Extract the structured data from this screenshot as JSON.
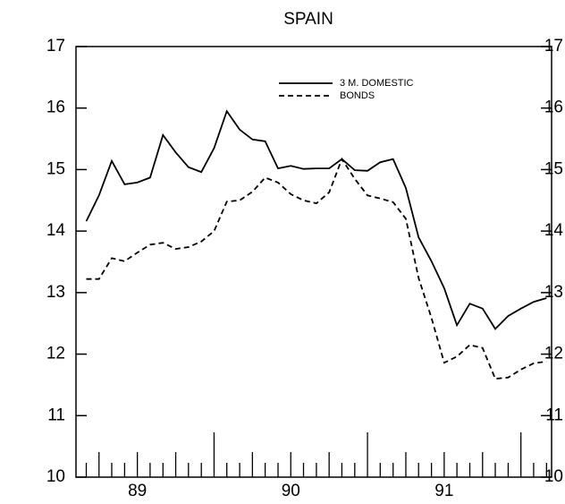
{
  "chart_data": {
    "type": "line",
    "title": "SPAIN",
    "x": [
      1988.667,
      1988.75,
      1988.833,
      1988.917,
      1989,
      1989.083,
      1989.167,
      1989.25,
      1989.333,
      1989.417,
      1989.5,
      1989.583,
      1989.667,
      1989.75,
      1989.833,
      1989.917,
      1990,
      1990.083,
      1990.167,
      1990.25,
      1990.333,
      1990.417,
      1990.5,
      1990.583,
      1990.667,
      1990.75,
      1990.833,
      1990.917,
      1991,
      1991.083,
      1991.167,
      1991.25,
      1991.333,
      1991.417,
      1991.5,
      1991.583,
      1991.667
    ],
    "series": [
      {
        "name": "3 M. DOMESTIC",
        "color": "#000000",
        "dash": "solid",
        "values": [
          14.16,
          14.58,
          15.14,
          14.76,
          14.79,
          14.87,
          15.56,
          15.28,
          15.04,
          14.96,
          15.35,
          15.95,
          15.65,
          15.49,
          15.46,
          15.02,
          15.06,
          15.01,
          15.02,
          15.02,
          15.17,
          14.99,
          14.98,
          15.12,
          15.17,
          14.7,
          13.9,
          13.51,
          13.07,
          12.47,
          12.82,
          12.74,
          12.41,
          12.62,
          12.74,
          12.85,
          12.91
        ]
      },
      {
        "name": "BONDS",
        "color": "#000000",
        "dash": "dashed",
        "values": [
          13.22,
          13.22,
          13.56,
          13.51,
          13.65,
          13.78,
          13.81,
          13.71,
          13.74,
          13.83,
          14.0,
          14.48,
          14.5,
          14.64,
          14.87,
          14.79,
          14.6,
          14.5,
          14.45,
          14.63,
          15.17,
          14.85,
          14.58,
          14.53,
          14.47,
          14.2,
          13.24,
          12.59,
          11.86,
          11.96,
          12.15,
          12.1,
          11.6,
          11.62,
          11.75,
          11.85,
          11.88
        ]
      }
    ],
    "xlim": [
      1988.6,
      1991.7
    ],
    "xticks": [
      {
        "value": 1989,
        "label": "89"
      },
      {
        "value": 1990,
        "label": "90"
      },
      {
        "value": 1991,
        "label": "91"
      }
    ],
    "ylim": [
      10,
      17
    ],
    "yticks": [
      10,
      11,
      12,
      13,
      14,
      15,
      16,
      17
    ],
    "right_axis": true,
    "legend": "top"
  }
}
